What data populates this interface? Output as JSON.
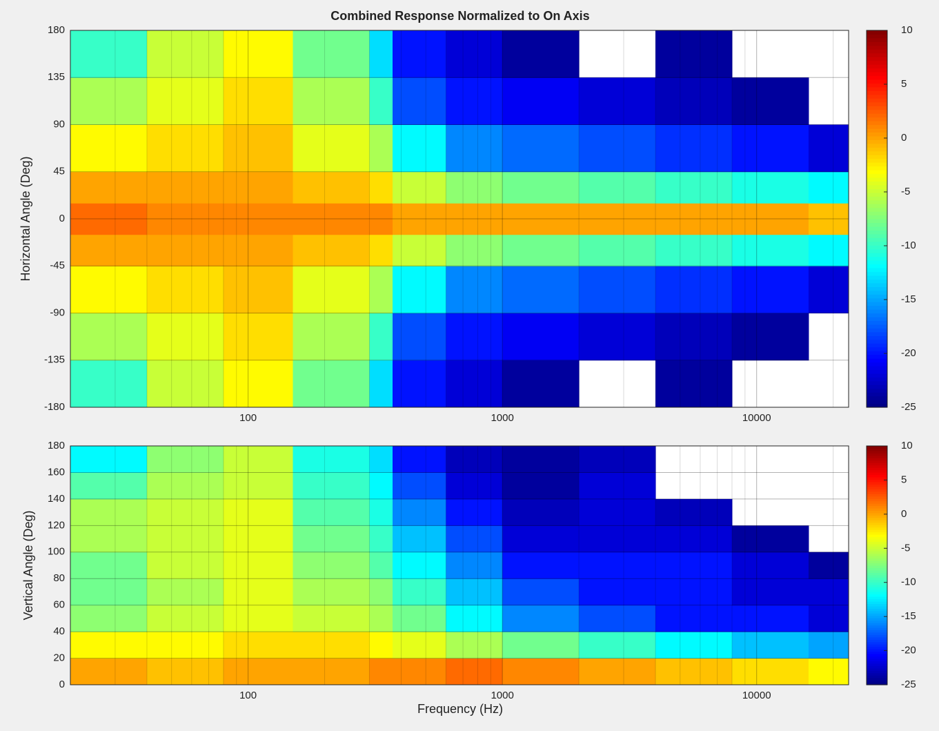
{
  "chart_data": [
    {
      "type": "heatmap",
      "title": "Combined Response Normalized to On Axis",
      "ylabel": "Horizontal Angle (Deg)",
      "colormap": "jet",
      "xscale": "log",
      "grid": true,
      "x_edges": [
        20,
        40,
        80,
        150,
        300,
        370,
        600,
        1000,
        2000,
        4000,
        8000,
        16000,
        23000
      ],
      "y_edges": [
        -180,
        -135,
        -90,
        -45,
        -15,
        15,
        45,
        90,
        135,
        180
      ],
      "values": [
        [
          -10,
          -5,
          -3,
          -8,
          -13,
          -20,
          -22,
          -24,
          null,
          -24,
          null,
          null
        ],
        [
          -6,
          -4,
          -2,
          -6,
          -10,
          -18,
          -20,
          -21,
          -22,
          -23,
          -24,
          null
        ],
        [
          -3,
          -2,
          -1,
          -4,
          -6,
          -12,
          -16,
          -17,
          -18,
          -19,
          -20,
          -22
        ],
        [
          0,
          0,
          0,
          -1,
          -2,
          -5,
          -7,
          -8,
          -9,
          -10,
          -11,
          -12
        ],
        [
          2,
          1,
          1,
          1,
          1,
          0,
          0,
          0,
          0,
          0,
          0,
          -1
        ],
        [
          0,
          0,
          0,
          -1,
          -2,
          -5,
          -7,
          -8,
          -9,
          -10,
          -11,
          -12
        ],
        [
          -3,
          -2,
          -1,
          -4,
          -6,
          -12,
          -16,
          -17,
          -18,
          -19,
          -20,
          -22
        ],
        [
          -6,
          -4,
          -2,
          -6,
          -10,
          -18,
          -20,
          -21,
          -22,
          -23,
          -24,
          null
        ],
        [
          -10,
          -5,
          -3,
          -8,
          -13,
          -20,
          -22,
          -24,
          null,
          -24,
          null,
          null
        ]
      ],
      "xlim": [
        20,
        23000
      ],
      "xticks": [
        100,
        1000,
        10000
      ],
      "ylim": [
        -180,
        180
      ],
      "yticks": [
        -180,
        -135,
        -90,
        -45,
        0,
        45,
        90,
        135,
        180
      ],
      "clim": [
        -25,
        10
      ],
      "cticks": [
        -25,
        -20,
        -15,
        -10,
        -5,
        0,
        5,
        10
      ]
    },
    {
      "type": "heatmap",
      "ylabel": "Vertical Angle (Deg)",
      "xlabel": "Frequency (Hz)",
      "colormap": "jet",
      "xscale": "log",
      "grid": true,
      "x_edges": [
        20,
        40,
        80,
        150,
        300,
        370,
        600,
        1000,
        2000,
        4000,
        8000,
        16000,
        23000
      ],
      "y_edges": [
        0,
        20,
        40,
        60,
        80,
        100,
        120,
        140,
        160,
        180
      ],
      "values": [
        [
          0,
          -1,
          0,
          0,
          1,
          1,
          2,
          1,
          0,
          -1,
          -2,
          -3
        ],
        [
          -3,
          -3,
          -2,
          -2,
          -3,
          -4,
          -6,
          -8,
          -10,
          -12,
          -14,
          -15
        ],
        [
          -7,
          -5,
          -4,
          -5,
          -6,
          -8,
          -12,
          -16,
          -18,
          -20,
          -20,
          -22
        ],
        [
          -8,
          -6,
          -4,
          -6,
          -7,
          -10,
          -14,
          -18,
          -20,
          -20,
          -22,
          -22
        ],
        [
          -8,
          -5,
          -4,
          -7,
          -9,
          -12,
          -16,
          -20,
          -20,
          -20,
          -22,
          -24
        ],
        [
          -6,
          -5,
          -4,
          -8,
          -10,
          -14,
          -18,
          -22,
          -22,
          -22,
          -24,
          null
        ],
        [
          -6,
          -5,
          -4,
          -9,
          -11,
          -16,
          -20,
          -23,
          -22,
          -23,
          null,
          null
        ],
        [
          -9,
          -6,
          -5,
          -10,
          -12,
          -18,
          -22,
          -24,
          -22,
          null,
          null,
          null
        ],
        [
          -12,
          -7,
          -5,
          -11,
          -13,
          -20,
          -23,
          -24,
          -23,
          null,
          null,
          null
        ]
      ],
      "xlim": [
        20,
        23000
      ],
      "xticks": [
        100,
        1000,
        10000
      ],
      "ylim": [
        0,
        180
      ],
      "yticks": [
        0,
        20,
        40,
        60,
        80,
        100,
        120,
        140,
        160,
        180
      ],
      "clim": [
        -25,
        10
      ],
      "cticks": [
        -25,
        -20,
        -15,
        -10,
        -5,
        0,
        5,
        10
      ]
    }
  ]
}
